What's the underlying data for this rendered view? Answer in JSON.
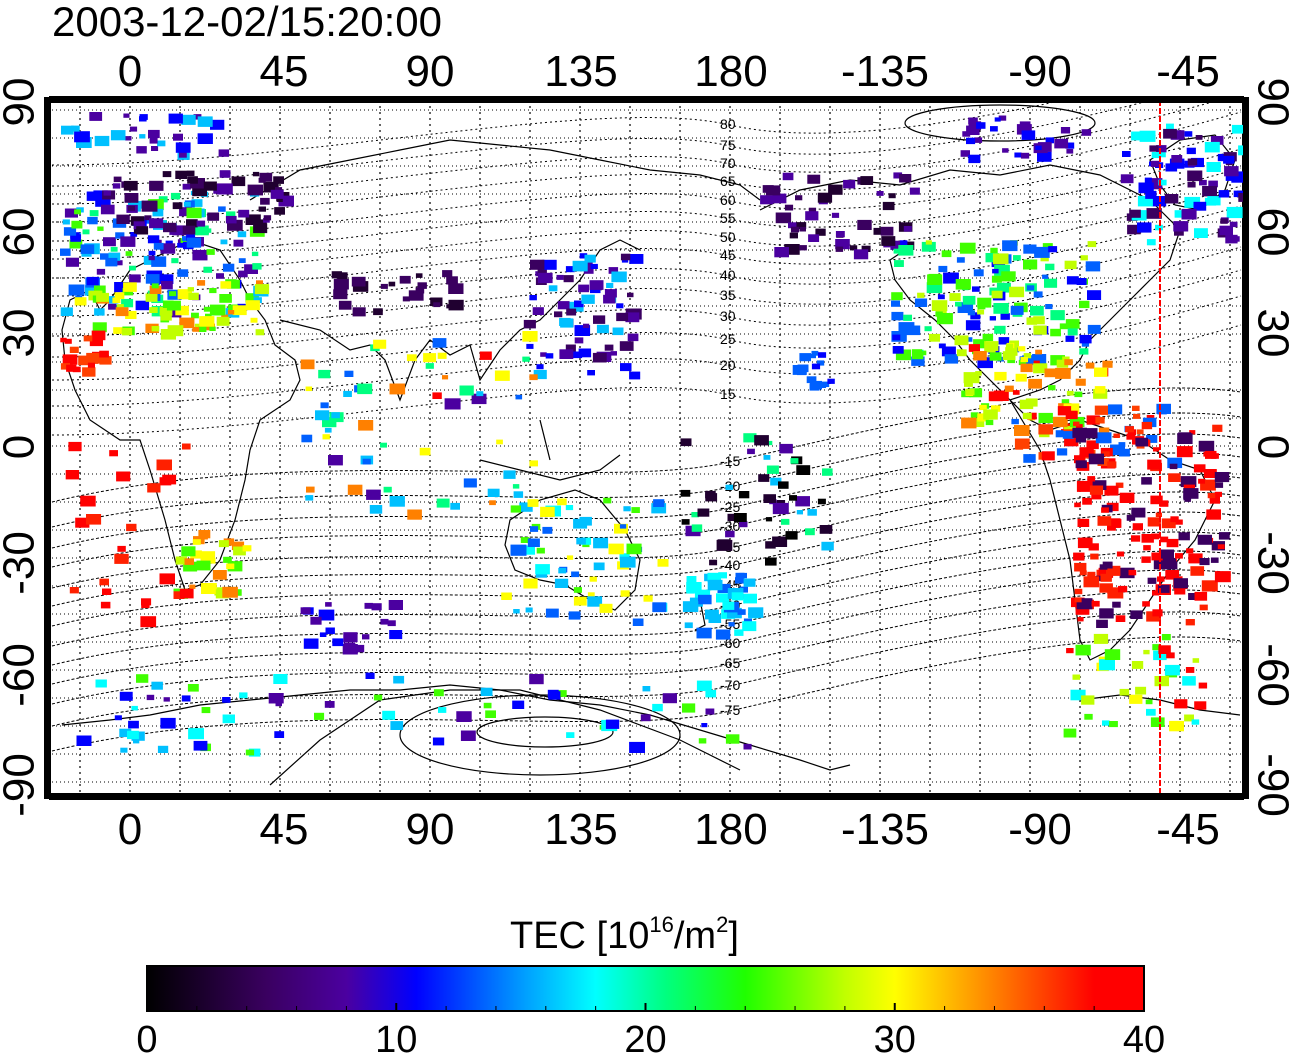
{
  "title": "2003-12-02/15:20:00",
  "map": {
    "lon_ticks_top": [
      "0",
      "45",
      "90",
      "135",
      "180",
      "-135",
      "-90",
      "-45"
    ],
    "lon_ticks_bottom": [
      "0",
      "45",
      "90",
      "135",
      "180",
      "-135",
      "-90",
      "-45"
    ],
    "lat_ticks_left": [
      "90",
      "60",
      "30",
      "0",
      "-30",
      "-60",
      "-90"
    ],
    "lat_ticks_right": [
      "90",
      "60",
      "30",
      "0",
      "-30",
      "-60",
      "-90"
    ],
    "contour_labels": [
      "80",
      "75",
      "70",
      "65",
      "60",
      "55",
      "50",
      "45",
      "40",
      "35",
      "30",
      "25",
      "20",
      "15",
      "-15",
      "-20",
      "-25",
      "-30",
      "-35",
      "-40",
      "-45",
      "-50",
      "-55",
      "-60",
      "-65",
      "-70",
      "-75"
    ],
    "gridline_style": "dotted",
    "terminator_color": "#ff0000"
  },
  "colorbar": {
    "label_main": "TEC  [10",
    "label_exp": "16",
    "label_unit": "/m",
    "label_exp2": "2",
    "label_close": "]",
    "ticks": [
      "0",
      "10",
      "20",
      "30",
      "40"
    ],
    "min": 0,
    "max": 40
  }
}
